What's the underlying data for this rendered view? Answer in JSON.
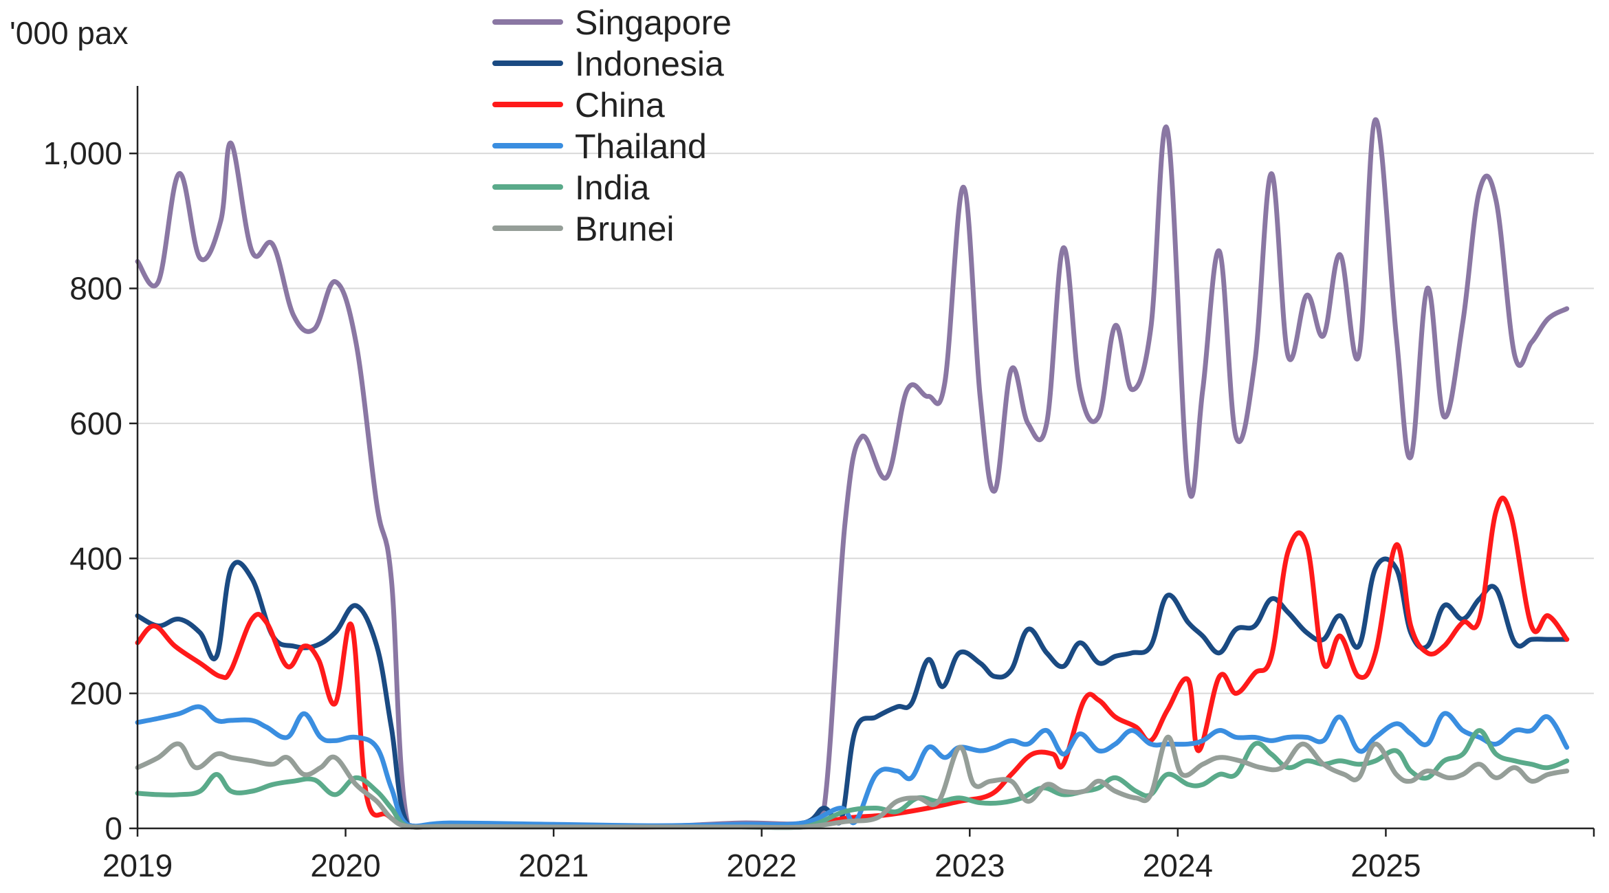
{
  "chart_data": {
    "type": "line",
    "ylabel": "'000 pax",
    "ylim": [
      0,
      1100
    ],
    "yticks": [
      0,
      200,
      400,
      600,
      800,
      1000
    ],
    "ytick_labels": [
      "0",
      "200",
      "400",
      "600",
      "800",
      "1,000"
    ],
    "xlim": [
      2019,
      2026
    ],
    "xticks": [
      2019,
      2020,
      2021,
      2022,
      2023,
      2024,
      2025
    ],
    "xtick_labels": [
      "2019",
      "2020",
      "2021",
      "2022",
      "2023",
      "2024",
      "2025"
    ],
    "grid": true,
    "legend_position": "top-center",
    "series": [
      {
        "name": "Singapore",
        "color": "#8a77a3",
        "x": [
          2019.0,
          2019.1,
          2019.2,
          2019.3,
          2019.4,
          2019.45,
          2019.55,
          2019.65,
          2019.75,
          2019.85,
          2019.95,
          2020.05,
          2020.15,
          2020.22,
          2020.3,
          2020.5,
          2021.0,
          2021.5,
          2021.9,
          2022.2,
          2022.3,
          2022.4,
          2022.48,
          2022.6,
          2022.7,
          2022.8,
          2022.88,
          2022.97,
          2023.05,
          2023.12,
          2023.2,
          2023.28,
          2023.37,
          2023.45,
          2023.53,
          2023.62,
          2023.7,
          2023.78,
          2023.87,
          2023.95,
          2024.05,
          2024.12,
          2024.2,
          2024.28,
          2024.37,
          2024.45,
          2024.53,
          2024.62,
          2024.7,
          2024.78,
          2024.87,
          2024.95,
          2025.05,
          2025.12,
          2025.2,
          2025.28,
          2025.37,
          2025.45,
          2025.53,
          2025.62,
          2025.7,
          2025.78,
          2025.87
        ],
        "values": [
          840,
          810,
          970,
          845,
          900,
          1015,
          855,
          865,
          760,
          740,
          810,
          720,
          480,
          370,
          5,
          5,
          3,
          3,
          8,
          8,
          30,
          450,
          580,
          520,
          650,
          640,
          660,
          950,
          640,
          500,
          680,
          600,
          600,
          860,
          650,
          610,
          745,
          650,
          740,
          1035,
          510,
          650,
          855,
          580,
          690,
          970,
          700,
          790,
          730,
          850,
          700,
          1050,
          730,
          550,
          800,
          610,
          750,
          945,
          930,
          700,
          720,
          755,
          770
        ]
      },
      {
        "name": "Indonesia",
        "color": "#1a4a82",
        "x": [
          2019.0,
          2019.1,
          2019.2,
          2019.3,
          2019.38,
          2019.45,
          2019.55,
          2019.65,
          2019.75,
          2019.85,
          2019.95,
          2020.05,
          2020.15,
          2020.22,
          2020.3,
          2020.5,
          2021.0,
          2021.5,
          2021.9,
          2022.2,
          2022.3,
          2022.38,
          2022.45,
          2022.55,
          2022.65,
          2022.72,
          2022.8,
          2022.87,
          2022.95,
          2023.05,
          2023.12,
          2023.2,
          2023.28,
          2023.37,
          2023.45,
          2023.53,
          2023.62,
          2023.7,
          2023.78,
          2023.87,
          2023.95,
          2024.05,
          2024.12,
          2024.2,
          2024.28,
          2024.37,
          2024.45,
          2024.53,
          2024.62,
          2024.7,
          2024.78,
          2024.87,
          2024.95,
          2025.05,
          2025.12,
          2025.2,
          2025.28,
          2025.37,
          2025.45,
          2025.53,
          2025.62,
          2025.7,
          2025.78,
          2025.87
        ],
        "values": [
          315,
          300,
          310,
          290,
          255,
          385,
          370,
          285,
          270,
          270,
          290,
          330,
          270,
          150,
          5,
          5,
          3,
          3,
          5,
          8,
          30,
          10,
          145,
          165,
          180,
          185,
          250,
          210,
          260,
          245,
          225,
          235,
          295,
          260,
          240,
          275,
          245,
          255,
          260,
          270,
          345,
          305,
          285,
          260,
          295,
          300,
          340,
          320,
          290,
          280,
          315,
          270,
          385,
          385,
          290,
          270,
          330,
          310,
          340,
          355,
          275,
          280,
          280,
          280
        ]
      },
      {
        "name": "China",
        "color": "#ff1a1a",
        "x": [
          2019.0,
          2019.08,
          2019.18,
          2019.3,
          2019.4,
          2019.45,
          2019.55,
          2019.62,
          2019.72,
          2019.8,
          2019.87,
          2019.95,
          2020.03,
          2020.1,
          2020.2,
          2020.3,
          2020.5,
          2021.0,
          2021.5,
          2021.9,
          2022.2,
          2022.4,
          2022.6,
          2022.8,
          2022.95,
          2023.1,
          2023.2,
          2023.3,
          2023.4,
          2023.45,
          2023.55,
          2023.62,
          2023.7,
          2023.8,
          2023.87,
          2023.95,
          2024.05,
          2024.1,
          2024.2,
          2024.28,
          2024.37,
          2024.45,
          2024.53,
          2024.62,
          2024.7,
          2024.78,
          2024.87,
          2024.95,
          2025.05,
          2025.12,
          2025.2,
          2025.28,
          2025.37,
          2025.45,
          2025.53,
          2025.6,
          2025.7,
          2025.78,
          2025.87
        ],
        "values": [
          275,
          300,
          270,
          245,
          225,
          235,
          310,
          305,
          240,
          270,
          250,
          185,
          300,
          50,
          20,
          3,
          3,
          2,
          2,
          3,
          3,
          15,
          20,
          30,
          40,
          50,
          80,
          110,
          110,
          95,
          190,
          190,
          165,
          150,
          130,
          175,
          220,
          115,
          225,
          200,
          230,
          255,
          410,
          420,
          245,
          285,
          225,
          260,
          420,
          300,
          260,
          270,
          305,
          310,
          470,
          465,
          300,
          315,
          280
        ]
      },
      {
        "name": "Thailand",
        "color": "#3a8ee0",
        "x": [
          2019.0,
          2019.1,
          2019.2,
          2019.3,
          2019.38,
          2019.45,
          2019.55,
          2019.62,
          2019.72,
          2019.8,
          2019.88,
          2019.95,
          2020.05,
          2020.15,
          2020.22,
          2020.3,
          2020.5,
          2021.0,
          2021.5,
          2021.9,
          2022.2,
          2022.38,
          2022.45,
          2022.55,
          2022.65,
          2022.72,
          2022.8,
          2022.88,
          2022.95,
          2023.05,
          2023.12,
          2023.2,
          2023.28,
          2023.37,
          2023.45,
          2023.53,
          2023.62,
          2023.7,
          2023.78,
          2023.87,
          2023.95,
          2024.05,
          2024.12,
          2024.2,
          2024.28,
          2024.37,
          2024.45,
          2024.53,
          2024.62,
          2024.7,
          2024.78,
          2024.87,
          2024.95,
          2025.05,
          2025.12,
          2025.2,
          2025.28,
          2025.37,
          2025.45,
          2025.53,
          2025.62,
          2025.7,
          2025.78,
          2025.87
        ],
        "values": [
          157,
          163,
          170,
          180,
          160,
          160,
          160,
          150,
          135,
          170,
          135,
          130,
          135,
          120,
          60,
          5,
          8,
          6,
          4,
          6,
          8,
          30,
          10,
          80,
          85,
          75,
          120,
          105,
          120,
          115,
          120,
          130,
          125,
          145,
          110,
          140,
          115,
          125,
          145,
          125,
          125,
          125,
          130,
          145,
          135,
          135,
          130,
          135,
          135,
          130,
          165,
          115,
          135,
          155,
          140,
          125,
          170,
          145,
          135,
          125,
          145,
          145,
          165,
          120
        ]
      },
      {
        "name": "India",
        "color": "#5aaa8a",
        "x": [
          2019.0,
          2019.1,
          2019.2,
          2019.3,
          2019.38,
          2019.45,
          2019.55,
          2019.65,
          2019.75,
          2019.85,
          2019.95,
          2020.05,
          2020.15,
          2020.22,
          2020.3,
          2020.5,
          2021.0,
          2021.5,
          2021.9,
          2022.2,
          2022.4,
          2022.55,
          2022.65,
          2022.75,
          2022.85,
          2022.95,
          2023.05,
          2023.15,
          2023.25,
          2023.35,
          2023.45,
          2023.55,
          2023.62,
          2023.7,
          2023.8,
          2023.87,
          2023.95,
          2024.05,
          2024.12,
          2024.2,
          2024.28,
          2024.37,
          2024.45,
          2024.53,
          2024.62,
          2024.7,
          2024.78,
          2024.87,
          2024.95,
          2025.05,
          2025.12,
          2025.2,
          2025.28,
          2025.37,
          2025.45,
          2025.53,
          2025.62,
          2025.7,
          2025.78,
          2025.87
        ],
        "values": [
          52,
          50,
          50,
          55,
          80,
          55,
          55,
          65,
          70,
          72,
          50,
          75,
          55,
          30,
          3,
          3,
          2,
          2,
          2,
          2,
          25,
          30,
          25,
          45,
          40,
          45,
          38,
          38,
          45,
          60,
          50,
          55,
          60,
          75,
          55,
          50,
          80,
          65,
          65,
          80,
          80,
          125,
          110,
          90,
          100,
          95,
          100,
          95,
          100,
          115,
          85,
          75,
          100,
          110,
          145,
          110,
          100,
          95,
          90,
          100
        ]
      },
      {
        "name": "Brunei",
        "color": "#959e98",
        "x": [
          2019.0,
          2019.1,
          2019.2,
          2019.28,
          2019.38,
          2019.45,
          2019.55,
          2019.65,
          2019.72,
          2019.8,
          2019.88,
          2019.95,
          2020.05,
          2020.15,
          2020.22,
          2020.3,
          2020.5,
          2021.0,
          2021.5,
          2021.9,
          2022.2,
          2022.4,
          2022.55,
          2022.65,
          2022.75,
          2022.85,
          2022.95,
          2023.02,
          2023.1,
          2023.2,
          2023.28,
          2023.37,
          2023.45,
          2023.55,
          2023.62,
          2023.7,
          2023.8,
          2023.87,
          2023.95,
          2024.02,
          2024.12,
          2024.2,
          2024.3,
          2024.4,
          2024.5,
          2024.6,
          2024.7,
          2024.8,
          2024.87,
          2024.95,
          2025.05,
          2025.12,
          2025.2,
          2025.3,
          2025.37,
          2025.45,
          2025.53,
          2025.62,
          2025.7,
          2025.78,
          2025.87
        ],
        "values": [
          90,
          105,
          125,
          90,
          110,
          105,
          100,
          95,
          105,
          80,
          90,
          105,
          65,
          40,
          15,
          3,
          3,
          2,
          2,
          2,
          2,
          10,
          15,
          40,
          45,
          40,
          120,
          65,
          70,
          70,
          40,
          65,
          55,
          55,
          70,
          55,
          45,
          50,
          135,
          80,
          95,
          105,
          100,
          90,
          90,
          125,
          95,
          80,
          75,
          125,
          80,
          70,
          85,
          75,
          80,
          95,
          75,
          90,
          70,
          80,
          85
        ]
      }
    ]
  }
}
